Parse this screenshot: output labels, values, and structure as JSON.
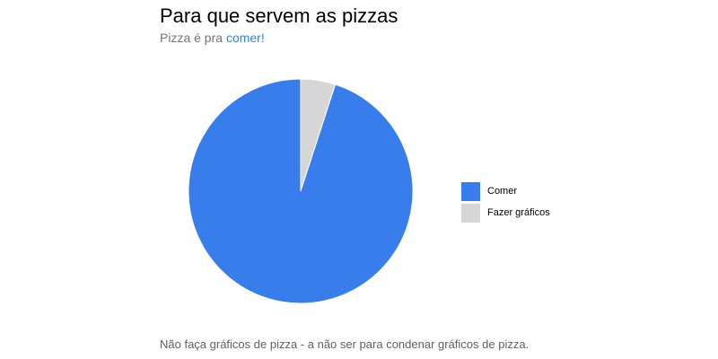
{
  "chart_data": {
    "type": "pie",
    "title": "Para que servem as pizzas",
    "subtitle": {
      "prefix": "Pizza é pra ",
      "highlight": "comer!"
    },
    "slices": [
      {
        "label": "Comer",
        "value": 95,
        "color": "#377eec"
      },
      {
        "label": "Fazer gráficos",
        "value": 5,
        "color": "#d6d6d6"
      }
    ],
    "legend_position": "right",
    "footnote": "Não faça gráficos de pizza - a não ser para condenar gráficos de pizza."
  }
}
